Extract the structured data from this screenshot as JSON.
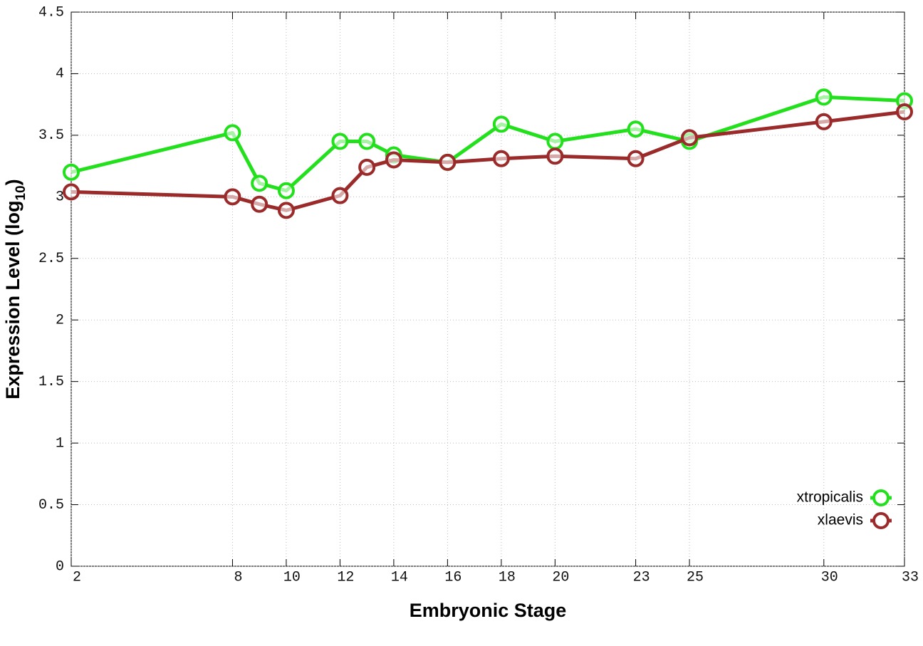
{
  "chart_data": {
    "type": "line",
    "x_label": "Embryonic Stage",
    "y_label": [
      "Expression Level (log",
      "10",
      ")"
    ],
    "x": [
      2,
      8,
      9,
      10,
      12,
      13,
      14,
      16,
      18,
      20,
      23,
      25,
      30,
      33
    ],
    "series": [
      {
        "name": "xtropicalis",
        "color": "#22e01c",
        "values": [
          3.2,
          3.52,
          3.11,
          3.05,
          3.45,
          3.45,
          3.34,
          3.28,
          3.59,
          3.45,
          3.55,
          3.45,
          3.81,
          3.78
        ]
      },
      {
        "name": "xlaevis",
        "color": "#9b2a2a",
        "values": [
          3.04,
          3.0,
          2.94,
          2.89,
          3.01,
          3.24,
          3.3,
          3.28,
          3.31,
          3.33,
          3.31,
          3.48,
          3.61,
          3.69
        ]
      }
    ],
    "xlim": [
      2,
      33
    ],
    "xticks": [
      2,
      8,
      10,
      12,
      14,
      16,
      18,
      20,
      23,
      25,
      30,
      33
    ],
    "ylim": [
      0,
      4.5
    ],
    "yticks": [
      0,
      0.5,
      1,
      1.5,
      2,
      2.5,
      3,
      3.5,
      4,
      4.5
    ],
    "grid": true,
    "legend_position": "bottom right"
  }
}
